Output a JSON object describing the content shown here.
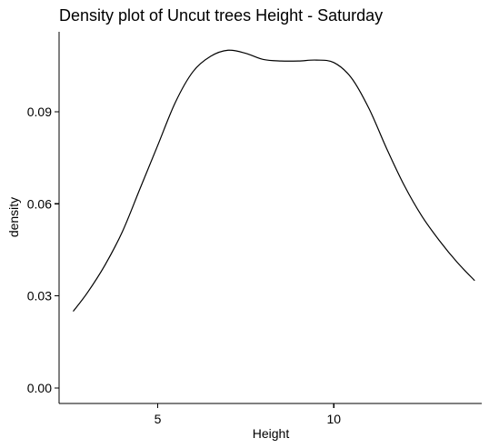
{
  "chart_data": {
    "type": "line",
    "title": "Density plot of Uncut trees Height - Saturday",
    "xlabel": "Height",
    "ylabel": "density",
    "xlim": [
      2.2,
      14.2
    ],
    "ylim": [
      -0.005,
      0.116
    ],
    "x_ticks": [
      {
        "value": 5,
        "label": "5"
      },
      {
        "value": 10,
        "label": "10"
      }
    ],
    "y_ticks": [
      {
        "value": 0.0,
        "label": "0.00"
      },
      {
        "value": 0.03,
        "label": "0.03"
      },
      {
        "value": 0.06,
        "label": "0.06"
      },
      {
        "value": 0.09,
        "label": "0.09"
      }
    ],
    "grid": false,
    "legend": "none",
    "line_color": "#000000",
    "series": [
      {
        "x": [
          2.6,
          3.0,
          3.5,
          4.0,
          4.5,
          5.0,
          5.5,
          6.0,
          6.5,
          7.0,
          7.5,
          8.0,
          8.5,
          9.0,
          9.5,
          10.0,
          10.5,
          11.0,
          11.5,
          12.0,
          12.5,
          13.0,
          13.5,
          14.0
        ],
        "y": [
          0.025,
          0.031,
          0.04,
          0.051,
          0.065,
          0.079,
          0.093,
          0.103,
          0.108,
          0.11,
          0.109,
          0.107,
          0.1065,
          0.1065,
          0.1068,
          0.106,
          0.101,
          0.091,
          0.078,
          0.066,
          0.056,
          0.048,
          0.041,
          0.035
        ]
      }
    ]
  }
}
